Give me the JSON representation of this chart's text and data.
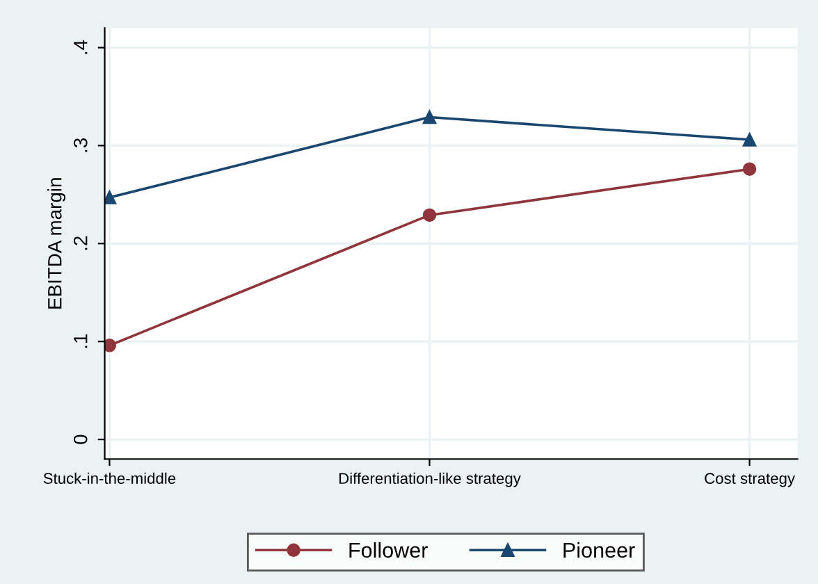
{
  "chart_data": {
    "type": "line",
    "ylabel": "EBITDA margin",
    "categories": [
      "Stuck-in-the-middle",
      "Differentiation-like strategy",
      "Cost strategy"
    ],
    "series": [
      {
        "name": "Follower",
        "color": "#90353b",
        "marker": "circle",
        "values": [
          0.096,
          0.229,
          0.276
        ]
      },
      {
        "name": "Pioneer",
        "color": "#1a476f",
        "marker": "triangle",
        "values": [
          0.247,
          0.329,
          0.306
        ]
      }
    ],
    "ylim": [
      -0.02,
      0.42
    ],
    "yticks": [
      0,
      {
        "value": 0.1,
        "label": ".1"
      },
      {
        "value": 0.2,
        "label": ".2"
      },
      {
        "value": 0.3,
        "label": ".3"
      },
      {
        "value": 0.4,
        "label": ".4"
      }
    ],
    "grid": true,
    "legend": "bottom",
    "line_style": "solid"
  }
}
